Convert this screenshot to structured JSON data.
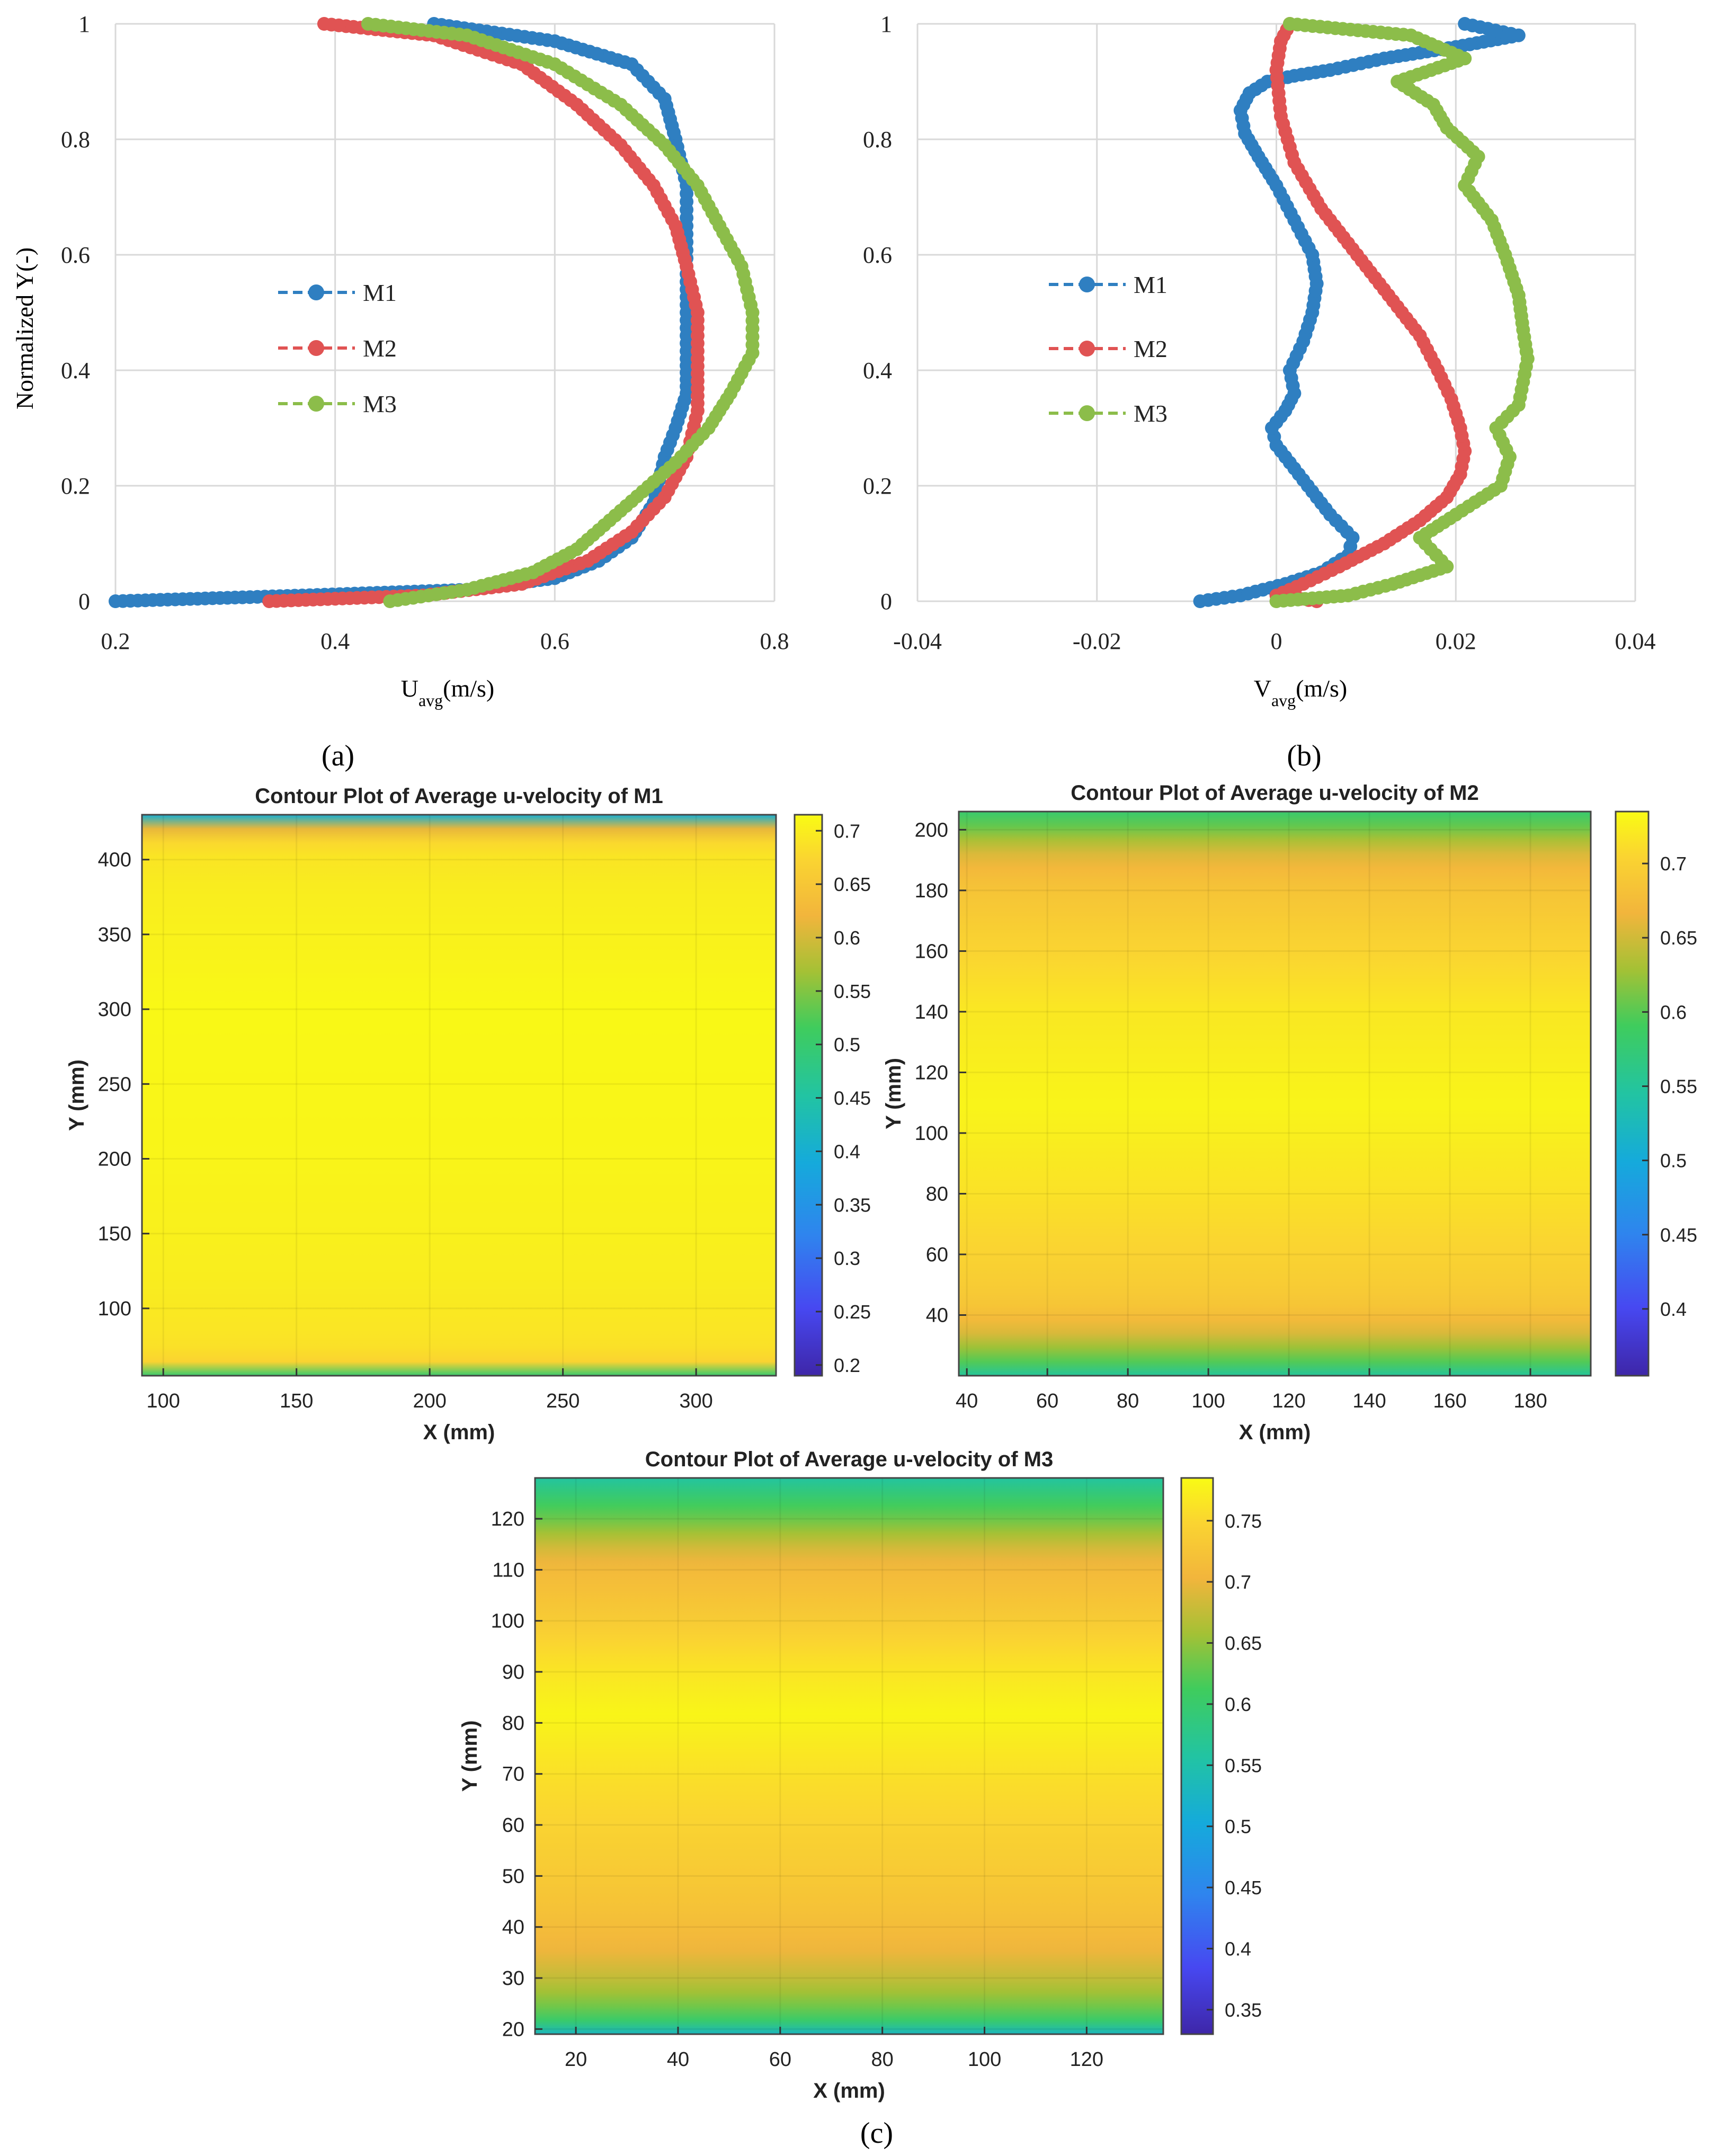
{
  "figure_labels": [
    "(a)",
    "(b)",
    "(c)"
  ],
  "chart_data": [
    {
      "id": "a",
      "type": "line",
      "xlabel_main": "U",
      "xlabel_sub": "avg",
      "xlabel_unit": "(m/s)",
      "ylabel": "Normalized Y(-)",
      "xlim": [
        0.2,
        0.8
      ],
      "ylim": [
        0,
        1
      ],
      "xticks": [
        "0.2",
        "0.4",
        "0.6",
        "0.8"
      ],
      "yticks": [
        "0",
        "0.2",
        "0.4",
        "0.6",
        "0.8",
        "1"
      ],
      "grid": true,
      "legend_position": "center-left",
      "series": [
        {
          "name": "M1",
          "color": "#2f7fc1",
          "x": [
            0.2,
            0.37,
            0.52,
            0.6,
            0.64,
            0.67,
            0.69,
            0.7,
            0.71,
            0.72,
            0.72,
            0.72,
            0.72,
            0.72,
            0.72,
            0.71,
            0.7,
            0.67,
            0.6,
            0.49
          ],
          "y": [
            0,
            0.01,
            0.02,
            0.04,
            0.07,
            0.11,
            0.17,
            0.25,
            0.3,
            0.36,
            0.42,
            0.5,
            0.58,
            0.65,
            0.72,
            0.8,
            0.87,
            0.93,
            0.97,
            1.0
          ]
        },
        {
          "name": "M2",
          "color": "#e05353",
          "x": [
            0.34,
            0.48,
            0.57,
            0.63,
            0.67,
            0.7,
            0.72,
            0.73,
            0.73,
            0.73,
            0.72,
            0.71,
            0.69,
            0.66,
            0.62,
            0.57,
            0.49,
            0.39
          ],
          "y": [
            0,
            0.01,
            0.03,
            0.07,
            0.12,
            0.18,
            0.25,
            0.33,
            0.42,
            0.5,
            0.58,
            0.65,
            0.72,
            0.79,
            0.86,
            0.93,
            0.98,
            1.0
          ]
        },
        {
          "name": "M3",
          "color": "#8cbd4a",
          "x": [
            0.45,
            0.52,
            0.58,
            0.62,
            0.65,
            0.68,
            0.71,
            0.74,
            0.76,
            0.78,
            0.78,
            0.77,
            0.75,
            0.73,
            0.7,
            0.66,
            0.6,
            0.52,
            0.43
          ],
          "y": [
            0,
            0.02,
            0.05,
            0.09,
            0.14,
            0.19,
            0.24,
            0.3,
            0.36,
            0.43,
            0.5,
            0.58,
            0.65,
            0.72,
            0.79,
            0.86,
            0.93,
            0.98,
            1.0
          ]
        }
      ]
    },
    {
      "id": "b",
      "type": "line",
      "xlabel_main": "V",
      "xlabel_sub": "avg",
      "xlabel_unit": "(m/s)",
      "ylabel": "",
      "xlim": [
        -0.04,
        0.04
      ],
      "ylim": [
        0,
        1
      ],
      "xticks": [
        "-0.04",
        "-0.02",
        "0",
        "0.02",
        "0.04"
      ],
      "yticks": [
        "0",
        "0.2",
        "0.4",
        "0.6",
        "0.8",
        "1"
      ],
      "grid": true,
      "legend_position": "center-left",
      "series": [
        {
          "name": "M1",
          "color": "#2f7fc1",
          "x": [
            -0.0085,
            -0.004,
            0.001,
            0.005,
            0.008,
            0.0085,
            0.006,
            0.004,
            0.002,
            0.0,
            -0.0005,
            0.001,
            0.002,
            0.0015,
            0.003,
            0.004,
            0.0045,
            0.004,
            0.002,
            0.0,
            -0.002,
            -0.0035,
            -0.004,
            -0.003,
            -0.001,
            0.002,
            0.006,
            0.012,
            0.02,
            0.027,
            0.021
          ],
          "y": [
            0,
            0.01,
            0.03,
            0.05,
            0.08,
            0.11,
            0.15,
            0.19,
            0.23,
            0.27,
            0.3,
            0.33,
            0.36,
            0.4,
            0.45,
            0.5,
            0.55,
            0.6,
            0.66,
            0.72,
            0.77,
            0.81,
            0.85,
            0.88,
            0.9,
            0.91,
            0.92,
            0.94,
            0.96,
            0.98,
            1.0
          ]
        },
        {
          "name": "M2",
          "color": "#e05353",
          "x": [
            0.0045,
            0.0,
            0.003,
            0.007,
            0.012,
            0.016,
            0.019,
            0.0205,
            0.021,
            0.0205,
            0.0195,
            0.018,
            0.016,
            0.013,
            0.009,
            0.005,
            0.002,
            0.0005,
            0.0,
            0.0005,
            0.0015
          ],
          "y": [
            0,
            0.01,
            0.03,
            0.06,
            0.1,
            0.14,
            0.18,
            0.22,
            0.26,
            0.3,
            0.35,
            0.4,
            0.46,
            0.52,
            0.6,
            0.68,
            0.76,
            0.84,
            0.92,
            0.97,
            1.0
          ]
        },
        {
          "name": "M3",
          "color": "#8cbd4a",
          "x": [
            0.0,
            0.008,
            0.013,
            0.019,
            0.016,
            0.02,
            0.025,
            0.026,
            0.0245,
            0.027,
            0.0275,
            0.028,
            0.0275,
            0.027,
            0.0255,
            0.024,
            0.021,
            0.0225,
            0.019,
            0.0175,
            0.0135,
            0.021,
            0.015,
            0.0015
          ],
          "y": [
            0,
            0.01,
            0.03,
            0.06,
            0.11,
            0.15,
            0.2,
            0.25,
            0.3,
            0.34,
            0.38,
            0.42,
            0.47,
            0.53,
            0.6,
            0.66,
            0.72,
            0.77,
            0.82,
            0.86,
            0.9,
            0.94,
            0.98,
            1.0
          ]
        }
      ]
    },
    {
      "id": "c1",
      "type": "heatmap",
      "title": "Contour Plot of Average u-velocity of M1",
      "xlabel": "X (mm)",
      "ylabel": "Y (mm)",
      "xlim": [
        92,
        330
      ],
      "ylim": [
        55,
        430
      ],
      "xticks": [
        100,
        150,
        200,
        250,
        300
      ],
      "yticks": [
        100,
        150,
        200,
        250,
        300,
        350,
        400
      ],
      "colorbar": {
        "min": 0.19,
        "max": 0.715,
        "ticks": [
          "0.2",
          "0.25",
          "0.3",
          "0.35",
          "0.4",
          "0.45",
          "0.5",
          "0.55",
          "0.6",
          "0.65",
          "0.7"
        ],
        "tick_values": [
          0.2,
          0.25,
          0.3,
          0.35,
          0.4,
          0.45,
          0.5,
          0.55,
          0.6,
          0.65,
          0.7
        ]
      },
      "profile_y": [
        55,
        58,
        62,
        66,
        80,
        120,
        200,
        300,
        380,
        405,
        415,
        422,
        426,
        430
      ],
      "profile_v": [
        0.5,
        0.6,
        0.66,
        0.68,
        0.69,
        0.7,
        0.708,
        0.712,
        0.7,
        0.69,
        0.67,
        0.6,
        0.52,
        0.4
      ]
    },
    {
      "id": "c2",
      "type": "heatmap",
      "title": "Contour Plot of Average u-velocity of M2",
      "xlabel": "X (mm)",
      "ylabel": "Y (mm)",
      "xlim": [
        38,
        195
      ],
      "ylim": [
        20,
        206
      ],
      "xticks": [
        40,
        60,
        80,
        100,
        120,
        140,
        160,
        180
      ],
      "yticks": [
        40,
        60,
        80,
        100,
        120,
        140,
        160,
        180,
        200
      ],
      "colorbar": {
        "min": 0.355,
        "max": 0.735,
        "ticks": [
          "0.4",
          "0.45",
          "0.5",
          "0.55",
          "0.6",
          "0.65",
          "0.7"
        ],
        "tick_values": [
          0.4,
          0.45,
          0.5,
          0.55,
          0.6,
          0.65,
          0.7
        ]
      },
      "profile_y": [
        20,
        22,
        25,
        30,
        35,
        42,
        55,
        80,
        110,
        140,
        165,
        180,
        190,
        197,
        202,
        206
      ],
      "profile_v": [
        0.55,
        0.58,
        0.6,
        0.63,
        0.66,
        0.685,
        0.7,
        0.715,
        0.73,
        0.72,
        0.7,
        0.685,
        0.665,
        0.63,
        0.6,
        0.58
      ]
    },
    {
      "id": "c3",
      "type": "heatmap",
      "title": "Contour Plot of Average u-velocity of M3",
      "xlabel": "X (mm)",
      "ylabel": "Y (mm)",
      "xlim": [
        12,
        135
      ],
      "ylim": [
        19,
        128
      ],
      "xticks": [
        20,
        40,
        60,
        80,
        100,
        120
      ],
      "yticks": [
        20,
        30,
        40,
        50,
        60,
        70,
        80,
        90,
        100,
        110,
        120
      ],
      "colorbar": {
        "min": 0.33,
        "max": 0.785,
        "ticks": [
          "0.35",
          "0.4",
          "0.45",
          "0.5",
          "0.55",
          "0.6",
          "0.65",
          "0.7",
          "0.75"
        ],
        "tick_values": [
          0.35,
          0.4,
          0.45,
          0.5,
          0.55,
          0.6,
          0.65,
          0.7,
          0.75
        ]
      },
      "profile_y": [
        19,
        20.5,
        22,
        25,
        29,
        35,
        42,
        55,
        70,
        82,
        92,
        102,
        110,
        115,
        119,
        123,
        126,
        128
      ],
      "profile_v": [
        0.53,
        0.57,
        0.61,
        0.64,
        0.67,
        0.7,
        0.72,
        0.74,
        0.76,
        0.78,
        0.76,
        0.73,
        0.71,
        0.68,
        0.64,
        0.61,
        0.58,
        0.56
      ]
    }
  ]
}
